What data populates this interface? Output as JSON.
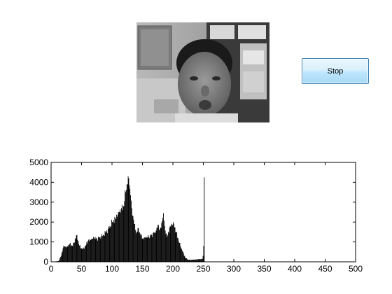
{
  "window": {
    "video_preview": "webcam-frame",
    "stop_button_label": "Stop"
  },
  "colors": {
    "stop_button_face": "#bee6fd",
    "stop_button_border": "#3c7fb1",
    "histogram_fill": "#000000"
  },
  "chart_data": {
    "type": "bar",
    "title": "",
    "xlabel": "",
    "ylabel": "",
    "xlim": [
      0,
      500
    ],
    "ylim": [
      0,
      5000
    ],
    "grid": false,
    "xticks": [
      0,
      50,
      100,
      150,
      200,
      250,
      300,
      350,
      400,
      450,
      500
    ],
    "yticks": [
      0,
      1000,
      2000,
      3000,
      4000,
      5000
    ],
    "bin_width": 1,
    "profile_x": [
      0,
      8,
      12,
      16,
      20,
      25,
      30,
      35,
      40,
      42,
      45,
      48,
      52,
      56,
      60,
      65,
      70,
      75,
      80,
      85,
      90,
      95,
      100,
      105,
      110,
      115,
      118,
      120,
      122,
      124,
      126,
      127,
      128,
      130,
      132,
      134,
      136,
      138,
      140,
      143,
      146,
      150,
      155,
      160,
      165,
      170,
      173,
      176,
      178,
      180,
      182,
      184,
      186,
      188,
      190,
      195,
      200,
      205,
      210,
      215,
      220,
      225,
      230,
      240,
      248,
      249,
      250,
      251,
      252,
      253,
      255
    ],
    "profile_y": [
      0,
      20,
      40,
      300,
      800,
      750,
      900,
      800,
      1200,
      1350,
      900,
      700,
      650,
      800,
      1050,
      1100,
      1200,
      1150,
      1250,
      1350,
      1500,
      1700,
      2000,
      2200,
      2500,
      2700,
      2800,
      3050,
      3500,
      3900,
      4300,
      4200,
      3850,
      3350,
      2700,
      2300,
      1900,
      1600,
      1500,
      1700,
      1400,
      1150,
      1200,
      1250,
      1350,
      1500,
      1700,
      1850,
      1650,
      1700,
      2050,
      2450,
      1800,
      1400,
      1250,
      1800,
      2000,
      1500,
      950,
      550,
      200,
      100,
      100,
      120,
      150,
      300,
      800,
      4250,
      0,
      0,
      0
    ]
  }
}
